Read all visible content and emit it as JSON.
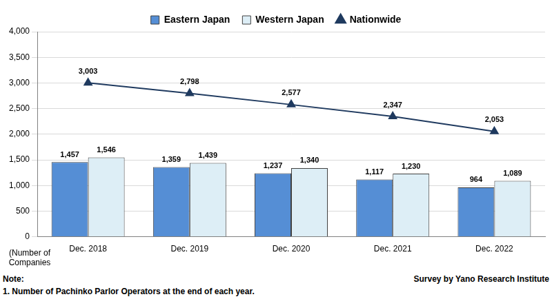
{
  "chart_data": {
    "type": "bar",
    "categories": [
      "Dec. 2018",
      "Dec. 2019",
      "Dec. 2020",
      "Dec. 2021",
      "Dec. 2022"
    ],
    "series": [
      {
        "name": "Eastern Japan",
        "type": "bar",
        "color": "#558ED5",
        "values": [
          1457,
          1359,
          1237,
          1117,
          964
        ],
        "value_labels": [
          "1,457",
          "1,359",
          "1,237",
          "1,117",
          "964"
        ]
      },
      {
        "name": "Western Japan",
        "type": "bar",
        "color": "#DDEEF6",
        "values": [
          1546,
          1439,
          1340,
          1230,
          1089
        ],
        "value_labels": [
          "1,546",
          "1,439",
          "1,340",
          "1,230",
          "1,089"
        ]
      },
      {
        "name": "Nationwide",
        "type": "line",
        "color": "#1F3A5F",
        "marker": "triangle",
        "values": [
          3003,
          2798,
          2577,
          2347,
          2053
        ],
        "value_labels": [
          "3,003",
          "2,798",
          "2,577",
          "2,347",
          "2,053"
        ]
      }
    ],
    "ylim": [
      0,
      4000
    ],
    "yticks": [
      0,
      500,
      {
        "value": 1000,
        "label": "1,000"
      },
      {
        "value": 1500,
        "label": "1,500"
      },
      {
        "value": 2000,
        "label": "2,000"
      },
      {
        "value": 2500,
        "label": "2,500"
      },
      {
        "value": 3000,
        "label": "3,000"
      },
      {
        "value": 3500,
        "label": "3,500"
      },
      {
        "value": 4000,
        "label": "4,000"
      }
    ],
    "grid": true,
    "legend": "top",
    "data_labels": true,
    "y_axis_title": "(Number of Companies",
    "notes": [
      "Note:",
      "1. Number of Pachinko Parlor Operators at the end of each year."
    ],
    "source": "Survey by Yano Research Institute"
  }
}
